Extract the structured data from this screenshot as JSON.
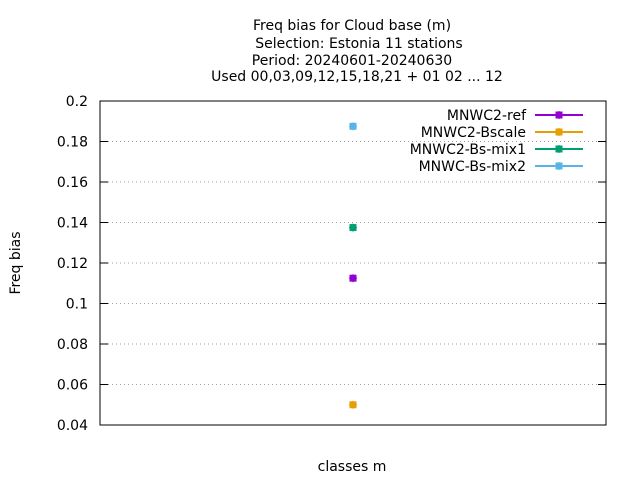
{
  "chart_data": {
    "type": "scatter",
    "title_lines": [
      "Freq bias  for Cloud base (m)",
      "Selection: Estonia     11 stations",
      "Period: 20240601-20240630",
      "Used 00,03,09,12,15,18,21 + 01 02 ... 12"
    ],
    "xlabel": "classes m",
    "ylabel": "Freq bias",
    "ylim": [
      0.04,
      0.2
    ],
    "yticks": [
      0.04,
      0.06,
      0.08,
      0.1,
      0.12,
      0.14,
      0.16,
      0.18,
      0.2
    ],
    "ytick_labels": [
      "0.04",
      "0.06",
      "0.08",
      "0.1",
      "0.12",
      "0.14",
      "0.16",
      "0.18",
      "0.2"
    ],
    "grid": true,
    "legend_position": "top-right",
    "x_position": 0.5,
    "series": [
      {
        "name": "MNWC2-ref",
        "color": "#9400d3",
        "values": [
          0.1125
        ]
      },
      {
        "name": "MNWC2-Bscale",
        "color": "#e69f00",
        "values": [
          0.05
        ]
      },
      {
        "name": "MNWC2-Bs-mix1",
        "color": "#009e73",
        "values": [
          0.1375
        ]
      },
      {
        "name": "MNWC-Bs-mix2",
        "color": "#56b4e9",
        "values": [
          0.1875
        ]
      }
    ]
  }
}
